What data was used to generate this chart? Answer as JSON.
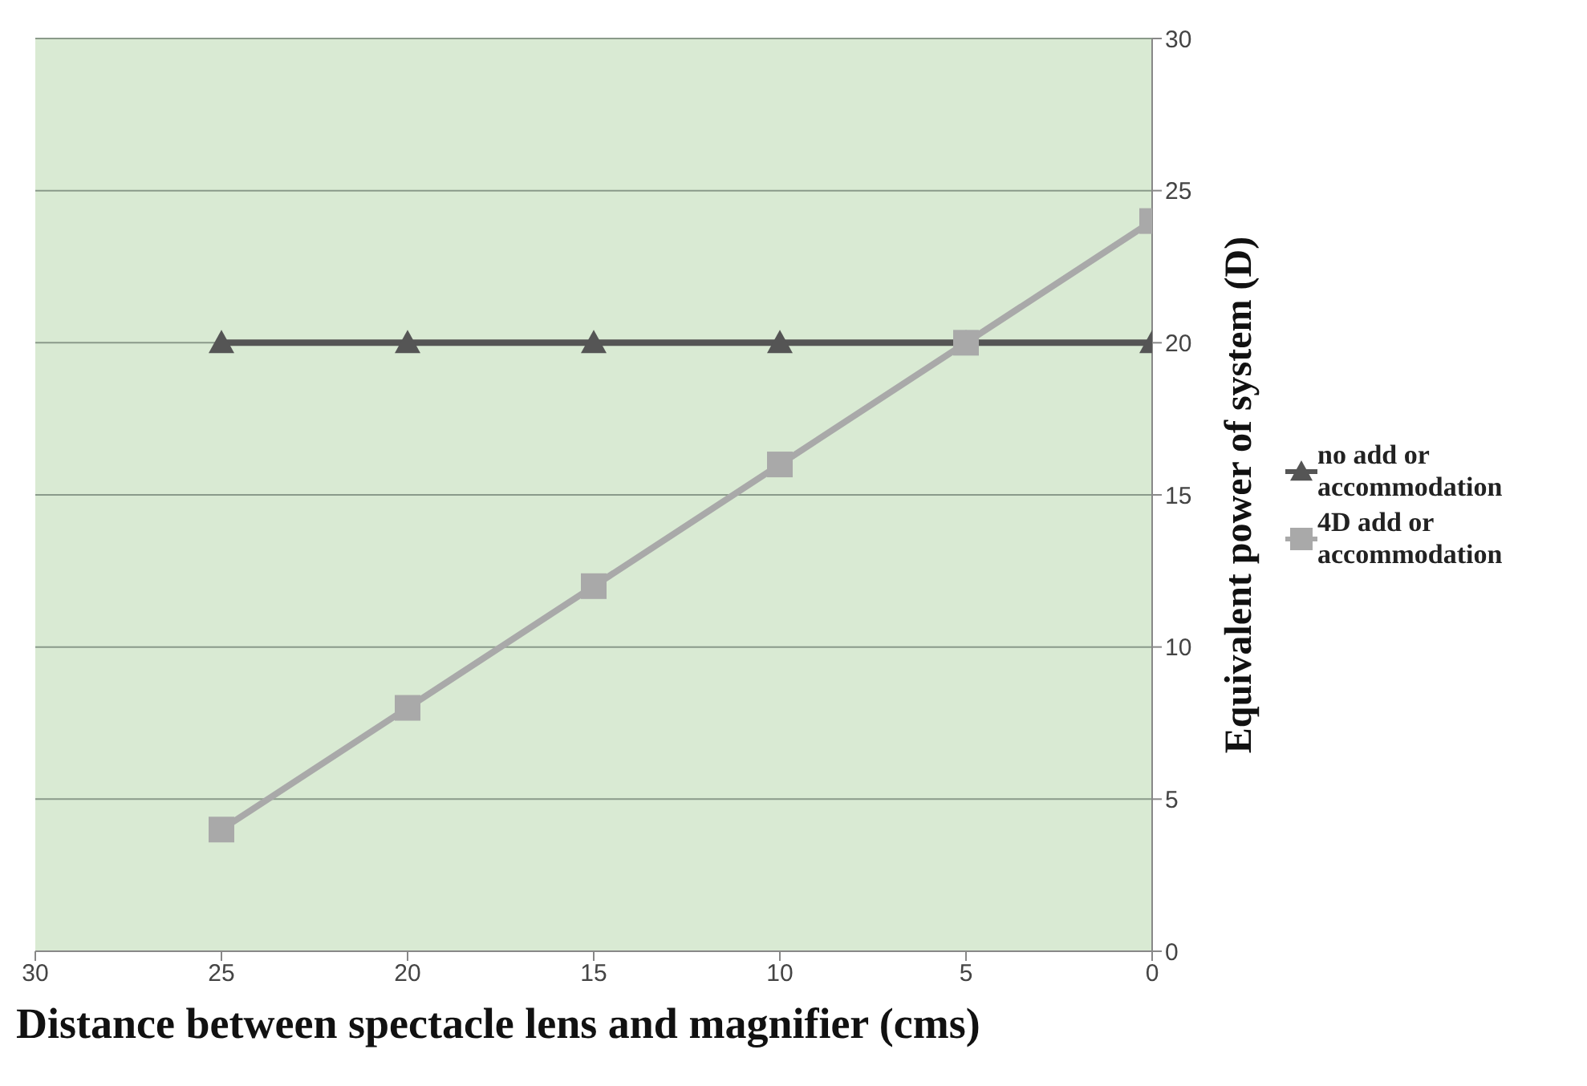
{
  "chart_data": {
    "type": "line",
    "xlabel": "Distance between spectacle lens and magnifier (cms)",
    "ylabel": "Equivalent power of system (D)",
    "x": [
      25,
      20,
      15,
      10,
      5,
      0
    ],
    "series": [
      {
        "name": "no add or accommodation",
        "color": "#555555",
        "marker": "triangle",
        "values": [
          20,
          20,
          20,
          20,
          20,
          20
        ]
      },
      {
        "name": "4D add or accommodation",
        "color": "#a9a9a9",
        "marker": "square",
        "values": [
          4,
          8,
          12,
          16,
          20,
          24
        ]
      }
    ],
    "xlim": [
      30,
      0
    ],
    "xticks": [
      30,
      25,
      20,
      15,
      10,
      5,
      0
    ],
    "ylim": [
      0,
      30
    ],
    "yticks": [
      0,
      5,
      10,
      15,
      20,
      25,
      30
    ],
    "grid": "y",
    "legend": "right",
    "line_style": "solid"
  }
}
